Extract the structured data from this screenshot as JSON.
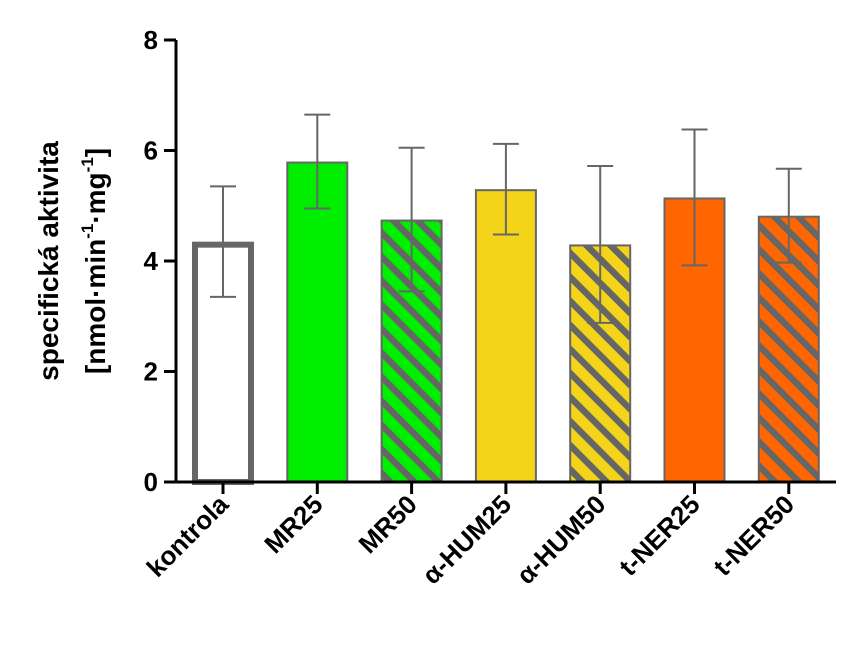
{
  "chart_data": {
    "type": "bar",
    "ylabel_line1": "specifická aktivita",
    "ylabel_line2": {
      "open": "[nmol",
      "dot1": "·",
      "min": "min",
      "exp1": "-1",
      "dot2": "·",
      "mg": "mg",
      "exp2": "-1",
      "close": "]"
    },
    "ylim": [
      0,
      8
    ],
    "yticks": [
      0,
      2,
      4,
      6,
      8
    ],
    "ytick_labels": [
      "0",
      "2",
      "4",
      "6",
      "8"
    ],
    "categories": [
      "kontrola",
      "MR25",
      "MR50",
      "α-HUM25",
      "α-HUM50",
      "t-NER25",
      "t-NER50"
    ],
    "values": [
      4.35,
      5.8,
      4.75,
      5.3,
      4.3,
      5.15,
      4.82
    ],
    "errors": [
      1.0,
      0.85,
      1.3,
      0.82,
      1.42,
      1.23,
      0.85
    ],
    "fills": [
      "#ffffff",
      "#00ee00",
      "#00ee00",
      "#f4d418",
      "#f4d418",
      "#ff6600",
      "#ff6600"
    ],
    "hatched": [
      false,
      false,
      true,
      false,
      true,
      false,
      true
    ],
    "edge_color": "#666666",
    "hatch_color": "#666666",
    "axis_color": "#000000",
    "errorbar_color": "#666666"
  }
}
